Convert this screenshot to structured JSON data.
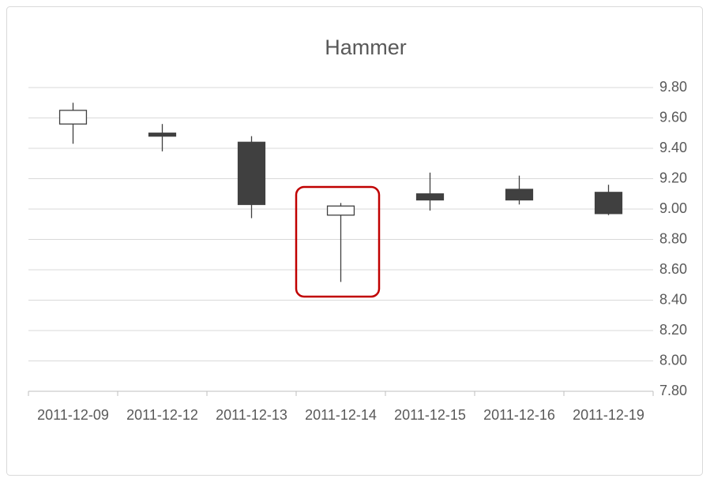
{
  "chart_data": {
    "type": "candlestick",
    "title": "Hammer",
    "categories": [
      "2011-12-09",
      "2011-12-12",
      "2011-12-13",
      "2011-12-14",
      "2011-12-15",
      "2011-12-16",
      "2011-12-19"
    ],
    "open": [
      9.56,
      9.5,
      9.44,
      8.96,
      9.1,
      9.13,
      9.11
    ],
    "high": [
      9.7,
      9.56,
      9.48,
      9.04,
      9.24,
      9.22,
      9.16
    ],
    "low": [
      9.43,
      9.38,
      8.94,
      8.52,
      8.99,
      9.03,
      8.96
    ],
    "close": [
      9.65,
      9.48,
      9.03,
      9.02,
      9.06,
      9.06,
      8.97
    ],
    "up_color": "#ffffff",
    "down_color": "#404040",
    "ylim": [
      7.8,
      9.8
    ],
    "yticks": [
      {
        "value": 7.8,
        "label": "7.80"
      },
      {
        "value": 8.0,
        "label": "8.00"
      },
      {
        "value": 8.2,
        "label": "8.20"
      },
      {
        "value": 8.4,
        "label": "8.40"
      },
      {
        "value": 8.6,
        "label": "8.60"
      },
      {
        "value": 8.8,
        "label": "8.80"
      },
      {
        "value": 9.0,
        "label": "9.00"
      },
      {
        "value": 9.2,
        "label": "9.20"
      },
      {
        "value": 9.4,
        "label": "9.40"
      },
      {
        "value": 9.6,
        "label": "9.60"
      },
      {
        "value": 9.8,
        "label": "9.80"
      }
    ],
    "grid": true
  }
}
